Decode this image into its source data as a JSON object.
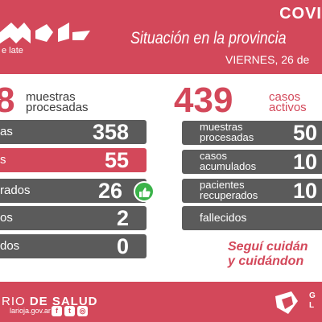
{
  "header": {
    "logo_text": "e late",
    "topic": "COVI",
    "headline": "Situación en la provincia",
    "date": "VIERNES, 26 de"
  },
  "left_summary": {
    "number": "8",
    "label_line1": "muestras",
    "label_line2": "procesadas"
  },
  "left_rows": [
    {
      "label": "as",
      "value": "358",
      "highlight": false
    },
    {
      "label": "s",
      "value": "55",
      "highlight": true
    },
    {
      "label": "rados",
      "value": "26",
      "highlight": false
    },
    {
      "label": "os",
      "value": "2",
      "highlight": false
    },
    {
      "label": "dos",
      "value": "0",
      "highlight": false
    }
  ],
  "right_summary": {
    "number": "439",
    "label_line1": "casos",
    "label_line2": "activos"
  },
  "right_rows": [
    {
      "label_line1": "muestras",
      "label_line2": "procesadas",
      "value": "50"
    },
    {
      "label_line1": "casos",
      "label_line2": "acumulados",
      "value": "10"
    },
    {
      "label_line1": "pacientes",
      "label_line2": "recuperados",
      "value": "10"
    },
    {
      "label_line1": "fallecidos",
      "label_line2": "",
      "value": ""
    }
  ],
  "slogan": {
    "line1": "Seguí cuidán",
    "line2": "y cuidándon"
  },
  "footer": {
    "ministry_prefix": "RIO",
    "ministry_bold": "DE SALUD",
    "site": "larioja.gov.ar",
    "social_icons": [
      "facebook-icon",
      "twitter-icon",
      "instagram-icon"
    ],
    "gov_line1": "G",
    "gov_line2": "L"
  },
  "colors": {
    "accent": "#d3485a",
    "row_dark": "#5b5b5b",
    "thumb_green": "#3bb34a"
  }
}
